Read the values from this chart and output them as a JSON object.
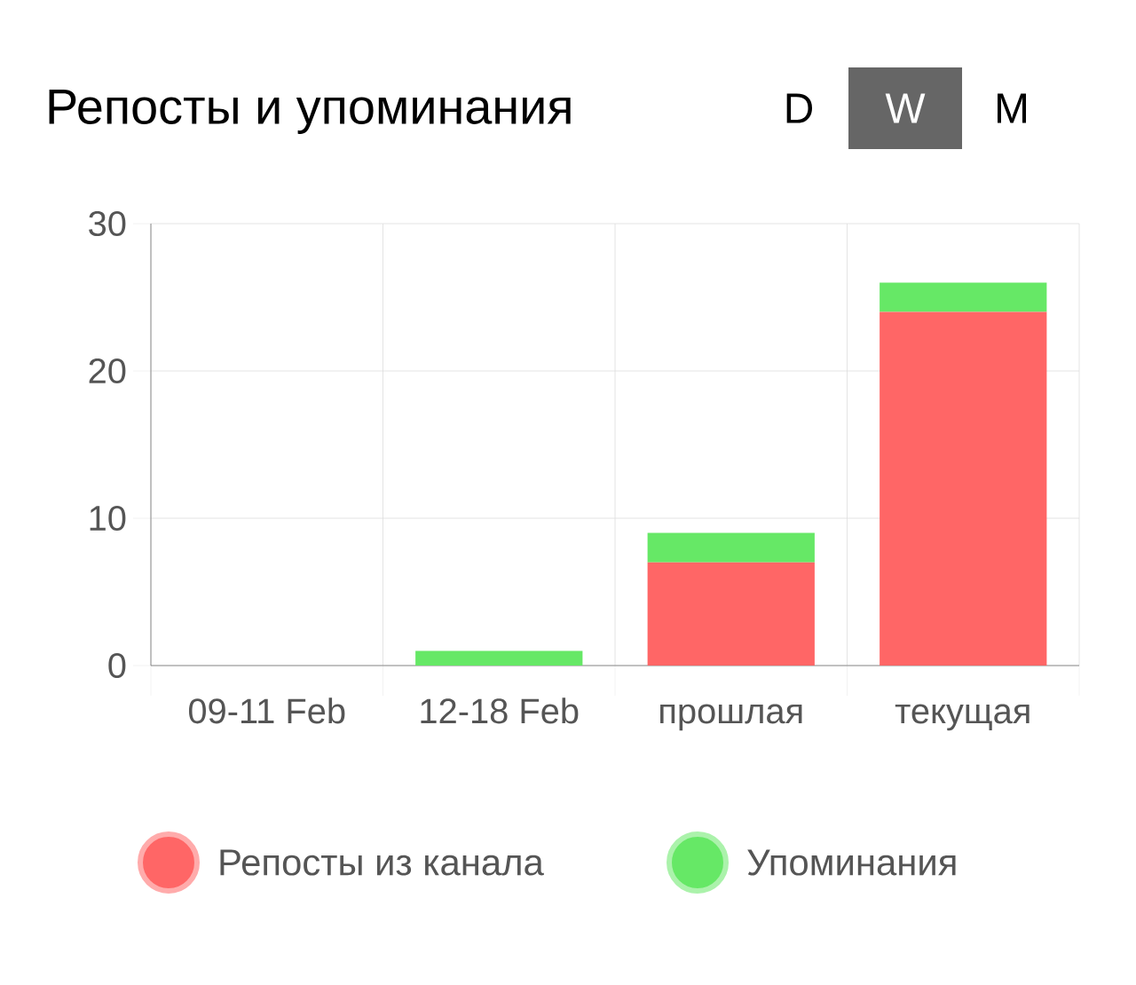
{
  "chart_data": {
    "type": "bar",
    "title": "Репосты и упоминания",
    "stacked": true,
    "categories": [
      "09-11 Feb",
      "12-18 Feb",
      "прошлая",
      "текущая"
    ],
    "series": [
      {
        "name": "Репосты из канала",
        "color": "#ff6666",
        "values": [
          0,
          0,
          7,
          24
        ]
      },
      {
        "name": "Упоминания",
        "color": "#66e866",
        "values": [
          0,
          1,
          2,
          2
        ]
      }
    ],
    "ylim": [
      0,
      30
    ],
    "yticks": [
      0,
      10,
      20,
      30
    ],
    "grid": true,
    "legend": "bottom",
    "annotations": [
      "D",
      "W",
      "M"
    ]
  }
}
